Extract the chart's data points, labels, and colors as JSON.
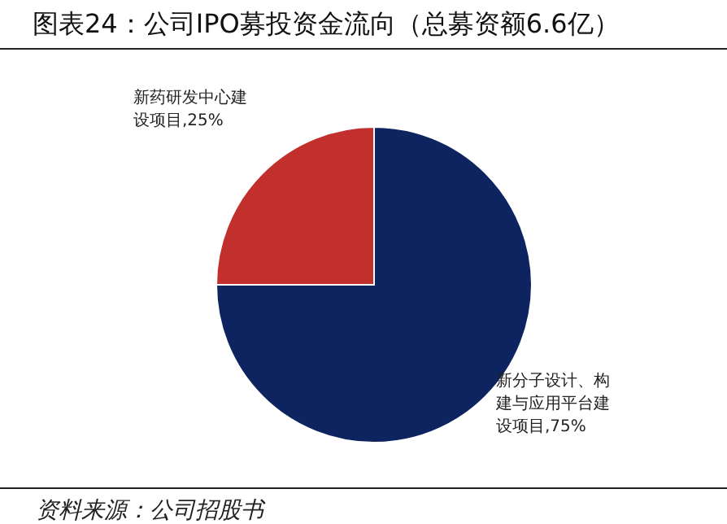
{
  "chart_data": {
    "type": "pie",
    "title": "图表24：公司IPO募投资金流向（总募资额6.6亿）",
    "categories": [
      "新分子设计、构建与应用平台建设项目",
      "新药研发中心建设项目"
    ],
    "values": [
      75,
      25
    ],
    "value_labels": [
      ",75%",
      ",25%"
    ],
    "colors": [
      "#0e2461",
      "#c1302c"
    ],
    "annotations": [
      "资料来源：公司招股书"
    ]
  }
}
